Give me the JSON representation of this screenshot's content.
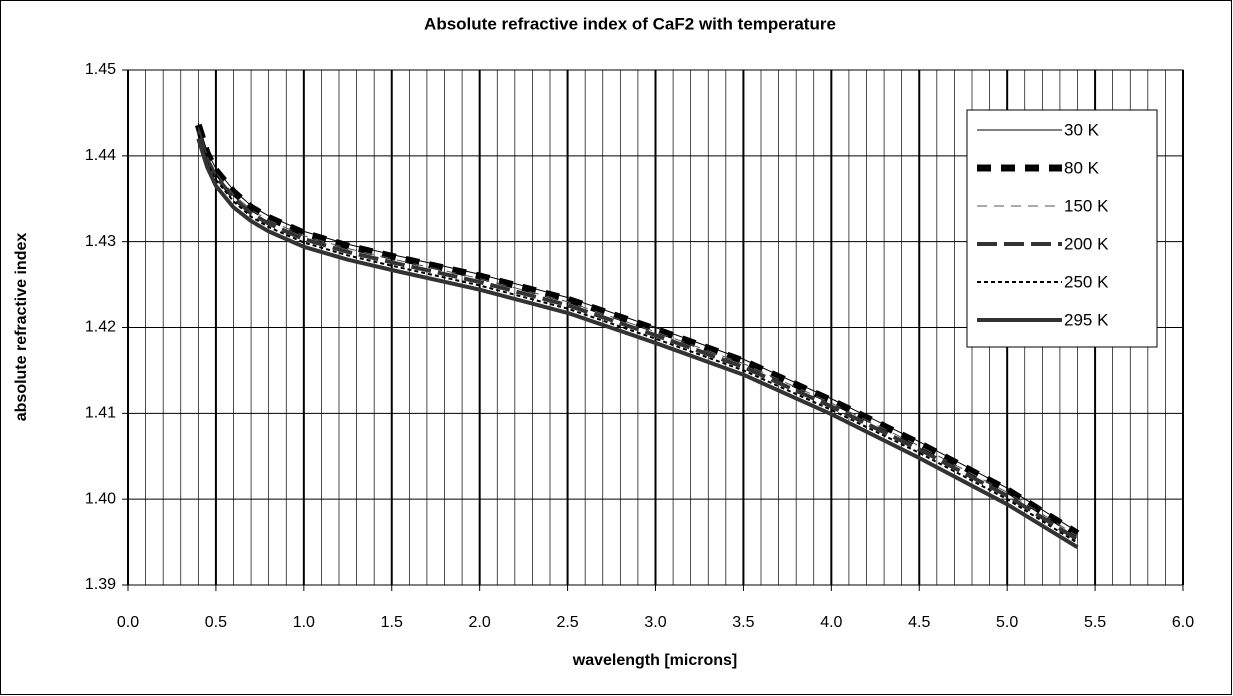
{
  "chart_data": {
    "type": "line",
    "title": "Absolute refractive index of CaF2 with temperature",
    "xlabel": "wavelength [microns]",
    "ylabel": "absolute refractive index",
    "x": [
      0.4,
      0.45,
      0.5,
      0.6,
      0.7,
      0.8,
      1.0,
      1.25,
      1.5,
      2.0,
      2.5,
      3.0,
      3.5,
      4.0,
      4.5,
      5.0,
      5.4
    ],
    "series": [
      {
        "name": "30 K",
        "color": "#000000",
        "style": "thin-solid",
        "values": [
          1.4438,
          1.4405,
          1.4385,
          1.436,
          1.4342,
          1.433,
          1.4312,
          1.4297,
          1.4285,
          1.4262,
          1.4235,
          1.42,
          1.4163,
          1.4117,
          1.4067,
          1.4013,
          1.3962
        ]
      },
      {
        "name": "80 K",
        "color": "#000000",
        "style": "thick-dashed",
        "values": [
          1.4436,
          1.4403,
          1.4383,
          1.4358,
          1.434,
          1.4328,
          1.431,
          1.4295,
          1.4283,
          1.426,
          1.4233,
          1.4198,
          1.4161,
          1.4115,
          1.4065,
          1.4011,
          1.396
        ]
      },
      {
        "name": "150 K",
        "color": "#555555",
        "style": "thin-dashed",
        "values": [
          1.4433,
          1.44,
          1.438,
          1.4355,
          1.4337,
          1.4325,
          1.4307,
          1.4292,
          1.428,
          1.4257,
          1.423,
          1.4195,
          1.4158,
          1.4112,
          1.4062,
          1.4008,
          1.3957
        ]
      },
      {
        "name": "200 K",
        "color": "#333333",
        "style": "medium-dashed",
        "values": [
          1.4429,
          1.4396,
          1.4376,
          1.4351,
          1.4333,
          1.4321,
          1.4303,
          1.4288,
          1.4276,
          1.4253,
          1.4226,
          1.4191,
          1.4154,
          1.4108,
          1.4058,
          1.4004,
          1.3953
        ]
      },
      {
        "name": "250 K",
        "color": "#000000",
        "style": "dotted",
        "values": [
          1.4425,
          1.4392,
          1.4372,
          1.4347,
          1.4329,
          1.4317,
          1.4299,
          1.4284,
          1.4272,
          1.4249,
          1.4222,
          1.4187,
          1.415,
          1.4104,
          1.4054,
          1.4,
          1.3949
        ]
      },
      {
        "name": "295 K",
        "color": "#333333",
        "style": "thick-solid",
        "values": [
          1.442,
          1.4387,
          1.4365,
          1.434,
          1.4324,
          1.4312,
          1.4294,
          1.4279,
          1.4267,
          1.4244,
          1.4217,
          1.4182,
          1.4145,
          1.4099,
          1.4048,
          1.3994,
          1.3944
        ]
      }
    ],
    "xlim": [
      0,
      6
    ],
    "xticks": [
      {
        "value": 0,
        "label": "0.0"
      },
      0.5,
      {
        "value": 1,
        "label": "1.0"
      },
      1.5,
      {
        "value": 2,
        "label": "2.0"
      },
      2.5,
      {
        "value": 3,
        "label": "3.0"
      },
      3.5,
      {
        "value": 4,
        "label": "4.0"
      },
      4.5,
      {
        "value": 5,
        "label": "5.0"
      },
      5.5,
      {
        "value": 6,
        "label": "6.0"
      }
    ],
    "x_minor_divisions": 5,
    "ylim": [
      1.39,
      1.45
    ],
    "yticks": [
      1.39,
      {
        "value": 1.4,
        "label": "1.40"
      },
      1.41,
      1.42,
      1.43,
      1.44,
      1.45
    ],
    "grid": true,
    "legend": "upper right"
  }
}
